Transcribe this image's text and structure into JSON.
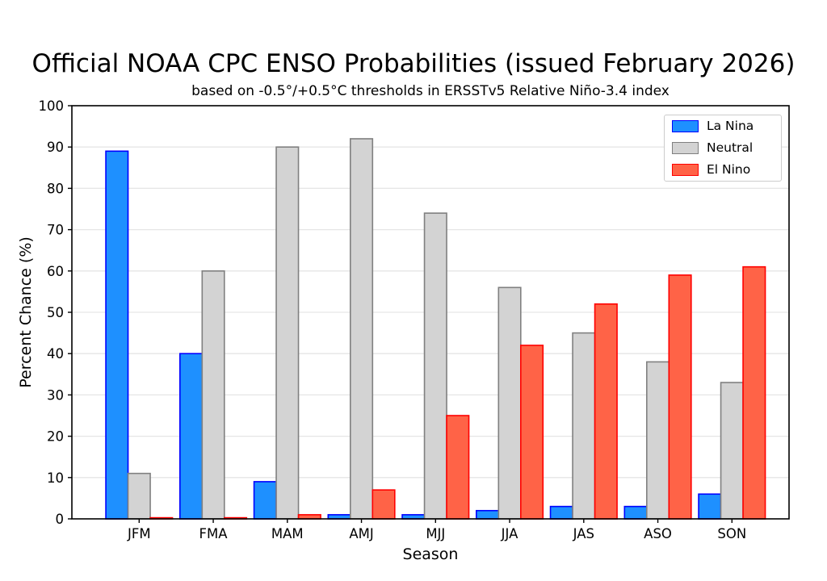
{
  "figure": {
    "title": "Official NOAA CPC ENSO Probabilities (issued February 2026)",
    "subtitle": "based on -0.5°/+0.5°C thresholds in ERSSTv5 Relative Niño-3.4 index"
  },
  "chart_data": {
    "type": "bar",
    "title": "Official NOAA CPC ENSO Probabilities (issued February 2026)",
    "subtitle": "based on -0.5°/+0.5°C thresholds in ERSSTv5 Relative Niño-3.4 index",
    "xlabel": "Season",
    "ylabel": "Percent Chance (%)",
    "ylim": [
      0,
      100
    ],
    "yticks": [
      0,
      10,
      20,
      30,
      40,
      50,
      60,
      70,
      80,
      90,
      100
    ],
    "grid": true,
    "grid_color": "#e6e6e6",
    "legend_position": "upper right",
    "categories": [
      "JFM",
      "FMA",
      "MAM",
      "AMJ",
      "MJJ",
      "JJA",
      "JAS",
      "ASO",
      "SON"
    ],
    "series": [
      {
        "name": "La Nina",
        "fill": "#1e90ff",
        "edge": "#0000ff",
        "values": [
          89,
          40,
          9,
          1,
          1,
          2,
          3,
          3,
          6
        ]
      },
      {
        "name": "Neutral",
        "fill": "#d3d3d3",
        "edge": "#808080",
        "values": [
          11,
          60,
          90,
          92,
          74,
          56,
          45,
          38,
          33
        ]
      },
      {
        "name": "El Nino",
        "fill": "#ff6347",
        "edge": "#ff0000",
        "values": [
          0,
          0,
          1,
          7,
          25,
          42,
          52,
          59,
          61
        ]
      }
    ]
  }
}
